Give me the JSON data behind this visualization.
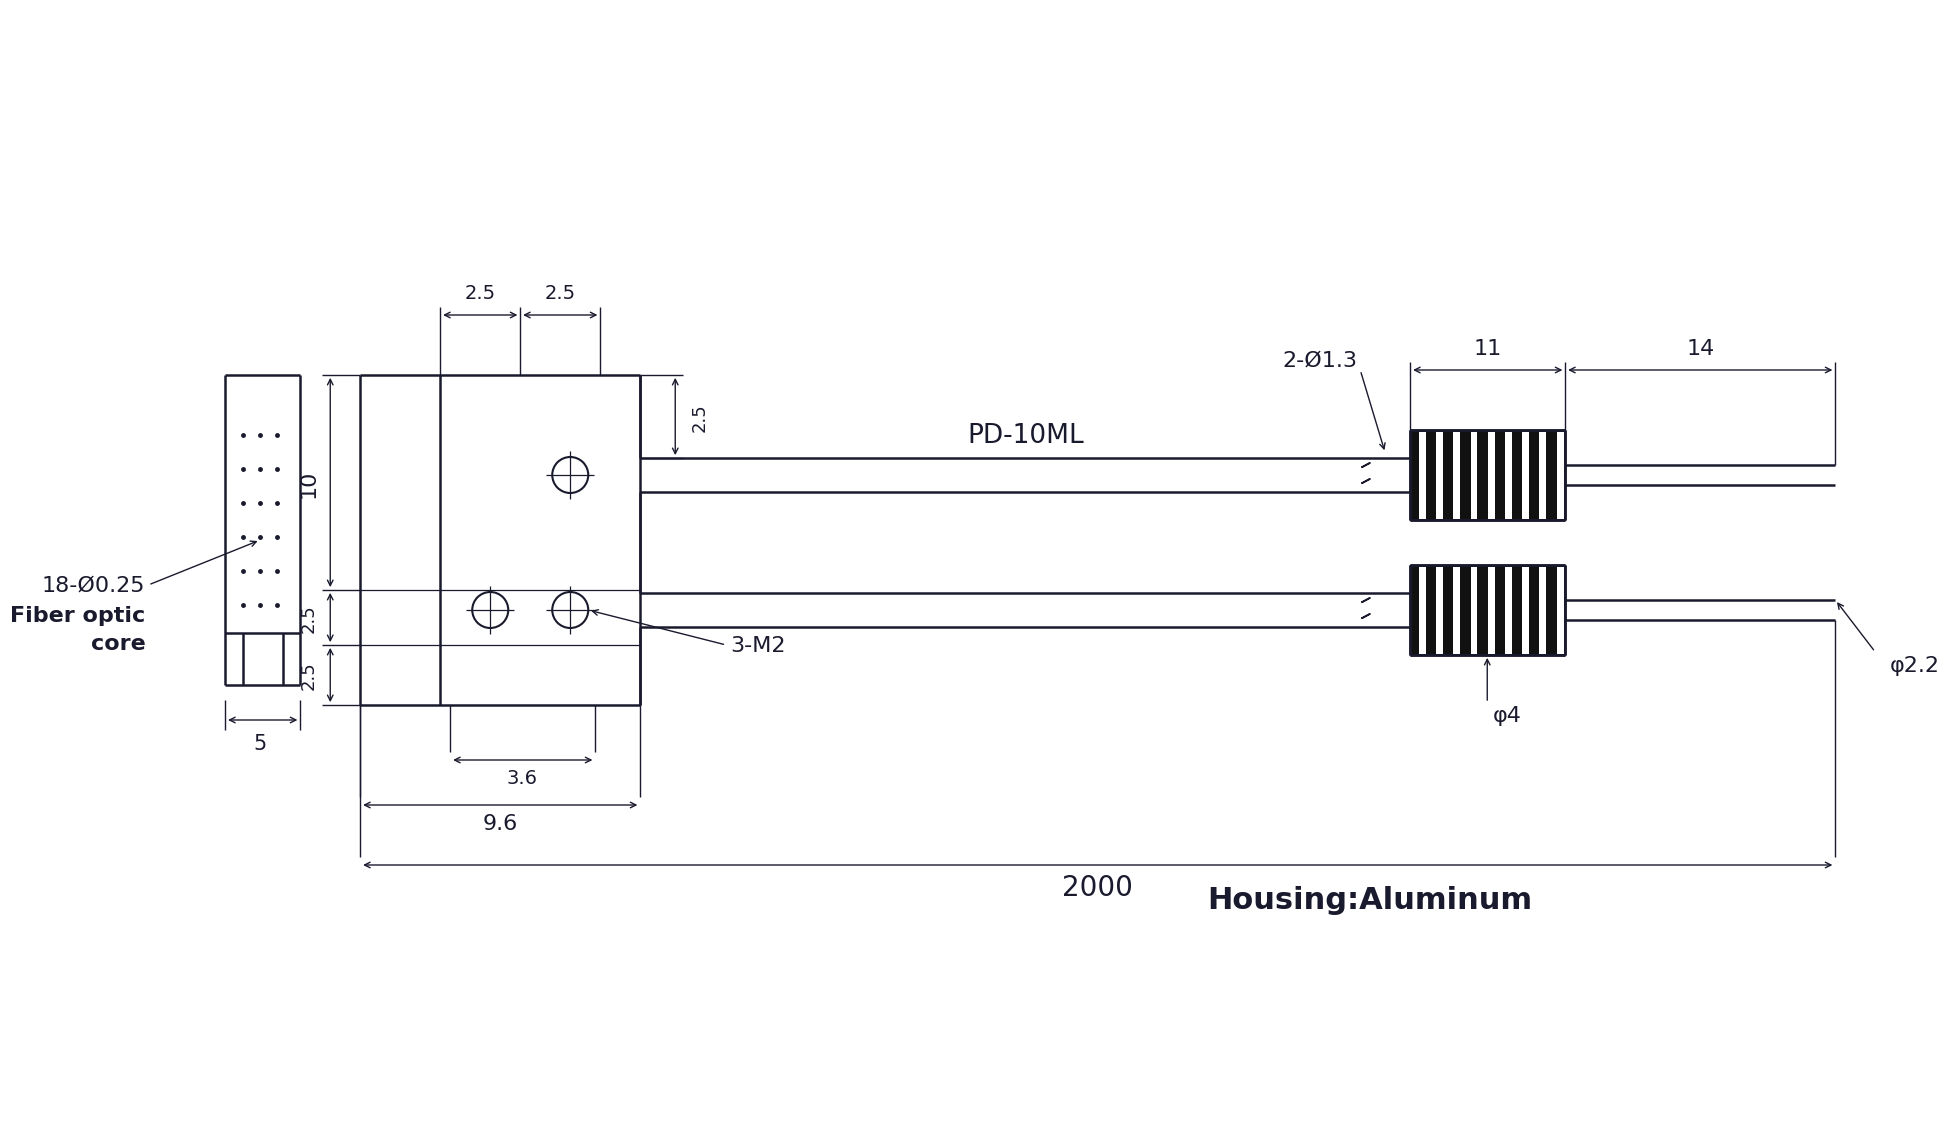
{
  "bg_color": "#ffffff",
  "line_color": "#1a1a2e",
  "text_color": "#1a1a2e",
  "housing_text": "Housing:Aluminum",
  "label_fiber": "18-Ø0.25",
  "label_fiber2": "Fiber optic",
  "label_fiber3": "core",
  "label_3m2": "3-M2",
  "label_pd": "PD-10ML",
  "label_phi4": "φ4",
  "label_phi22": "φ2.2",
  "label_2phi13": "2-Ø1.3",
  "dim_5": "5",
  "dim_10": "10",
  "dim_25a": "2.5",
  "dim_25b": "2.5",
  "dim_25c": "2.5",
  "dim_36": "3.6",
  "dim_96": "9.6",
  "dim_11": "11",
  "dim_14": "14",
  "dim_2000": "2000"
}
